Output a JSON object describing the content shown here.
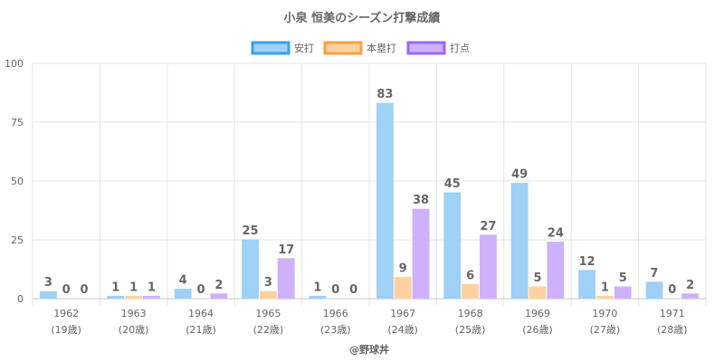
{
  "chart_data": {
    "type": "bar",
    "title": "小泉 恒美のシーズン打撃成績",
    "credit": "@野球丼",
    "categories": [
      "1962",
      "1963",
      "1964",
      "1965",
      "1966",
      "1967",
      "1968",
      "1969",
      "1970",
      "1971"
    ],
    "ages": [
      "(19歳)",
      "(20歳)",
      "(21歳)",
      "(22歳)",
      "(23歳)",
      "(24歳)",
      "(25歳)",
      "(26歳)",
      "(27歳)",
      "(28歳)"
    ],
    "ylim": [
      0,
      100
    ],
    "yticks": [
      0,
      25,
      50,
      75,
      100
    ],
    "grid": true,
    "legend_position": "top-center",
    "series": [
      {
        "name": "安打",
        "values": [
          3,
          1,
          4,
          25,
          1,
          83,
          45,
          49,
          12,
          7
        ],
        "fill": "#9fd0f5",
        "stroke": "#36a2eb"
      },
      {
        "name": "本塁打",
        "values": [
          0,
          1,
          0,
          3,
          0,
          9,
          6,
          5,
          1,
          0
        ],
        "fill": "#ffd0a0",
        "stroke": "#ff9f40"
      },
      {
        "name": "打点",
        "values": [
          0,
          1,
          2,
          17,
          0,
          38,
          27,
          24,
          5,
          2
        ],
        "fill": "#cdb2fb",
        "stroke": "#9966ff"
      }
    ]
  }
}
